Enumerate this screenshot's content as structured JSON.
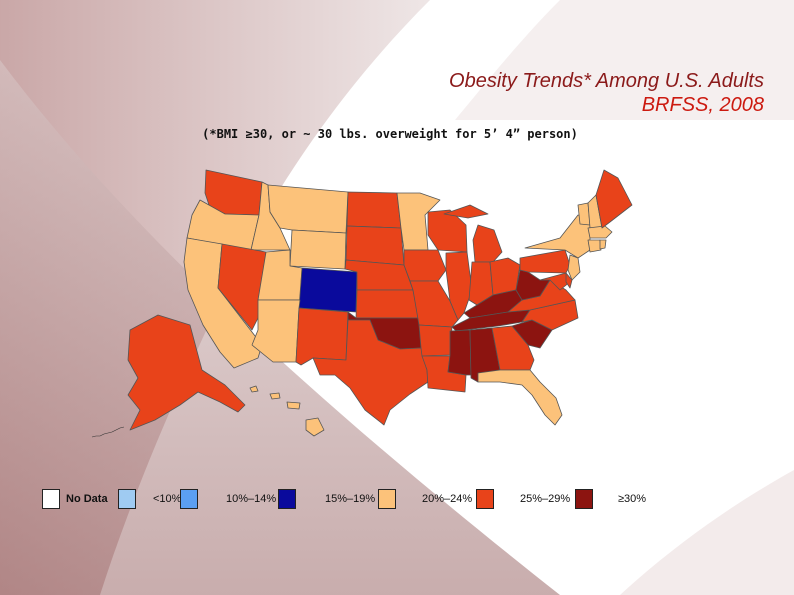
{
  "slide": {
    "title_line1": "Obesity Trends* Among U.S. Adults",
    "title_line2": "BRFSS, 2008",
    "subtitle": "(*BMI ≥30, or ~ 30 lbs. overweight for 5’ 4” person)"
  },
  "colors": {
    "no_data": "#ffffff",
    "lt10": "#9fcbf2",
    "p10_14": "#5b9ff2",
    "p15_19": "#0a0a9c",
    "p20_24": "#fcc27a",
    "p25_29": "#e8431a",
    "ge30": "#8c1410",
    "border": "#555555"
  },
  "legend": [
    {
      "label": "No Data",
      "color": "#ffffff"
    },
    {
      "label": "<10%",
      "color": "#9fcbf2"
    },
    {
      "label": "10%–14%",
      "color": "#5b9ff2"
    },
    {
      "label": "15%–19%",
      "color": "#0a0a9c"
    },
    {
      "label": "20%–24%",
      "color": "#fcc27a"
    },
    {
      "label": "25%–29%",
      "color": "#e8431a"
    },
    {
      "label": "≥30%",
      "color": "#8c1410"
    }
  ],
  "map_categories": {
    "15_19": [
      "CO"
    ],
    "20_24": [
      "OR",
      "CA",
      "ID",
      "MT",
      "WY",
      "UT",
      "AZ",
      "MN",
      "NY",
      "VT",
      "NH",
      "MA",
      "CT",
      "NJ",
      "RI",
      "HI",
      "FL",
      "DC"
    ],
    "25_29": [
      "WA",
      "NV",
      "NM",
      "TX",
      "ND",
      "SD",
      "NE",
      "KS",
      "IA",
      "MO",
      "AR",
      "LA",
      "WI",
      "IL",
      "MI",
      "IN",
      "OH",
      "GA",
      "NC",
      "VA",
      "PA",
      "MD",
      "DE",
      "ME",
      "AK"
    ],
    "ge30": [
      "OK",
      "TN",
      "KY",
      "WV",
      "MS",
      "AL",
      "SC"
    ]
  }
}
